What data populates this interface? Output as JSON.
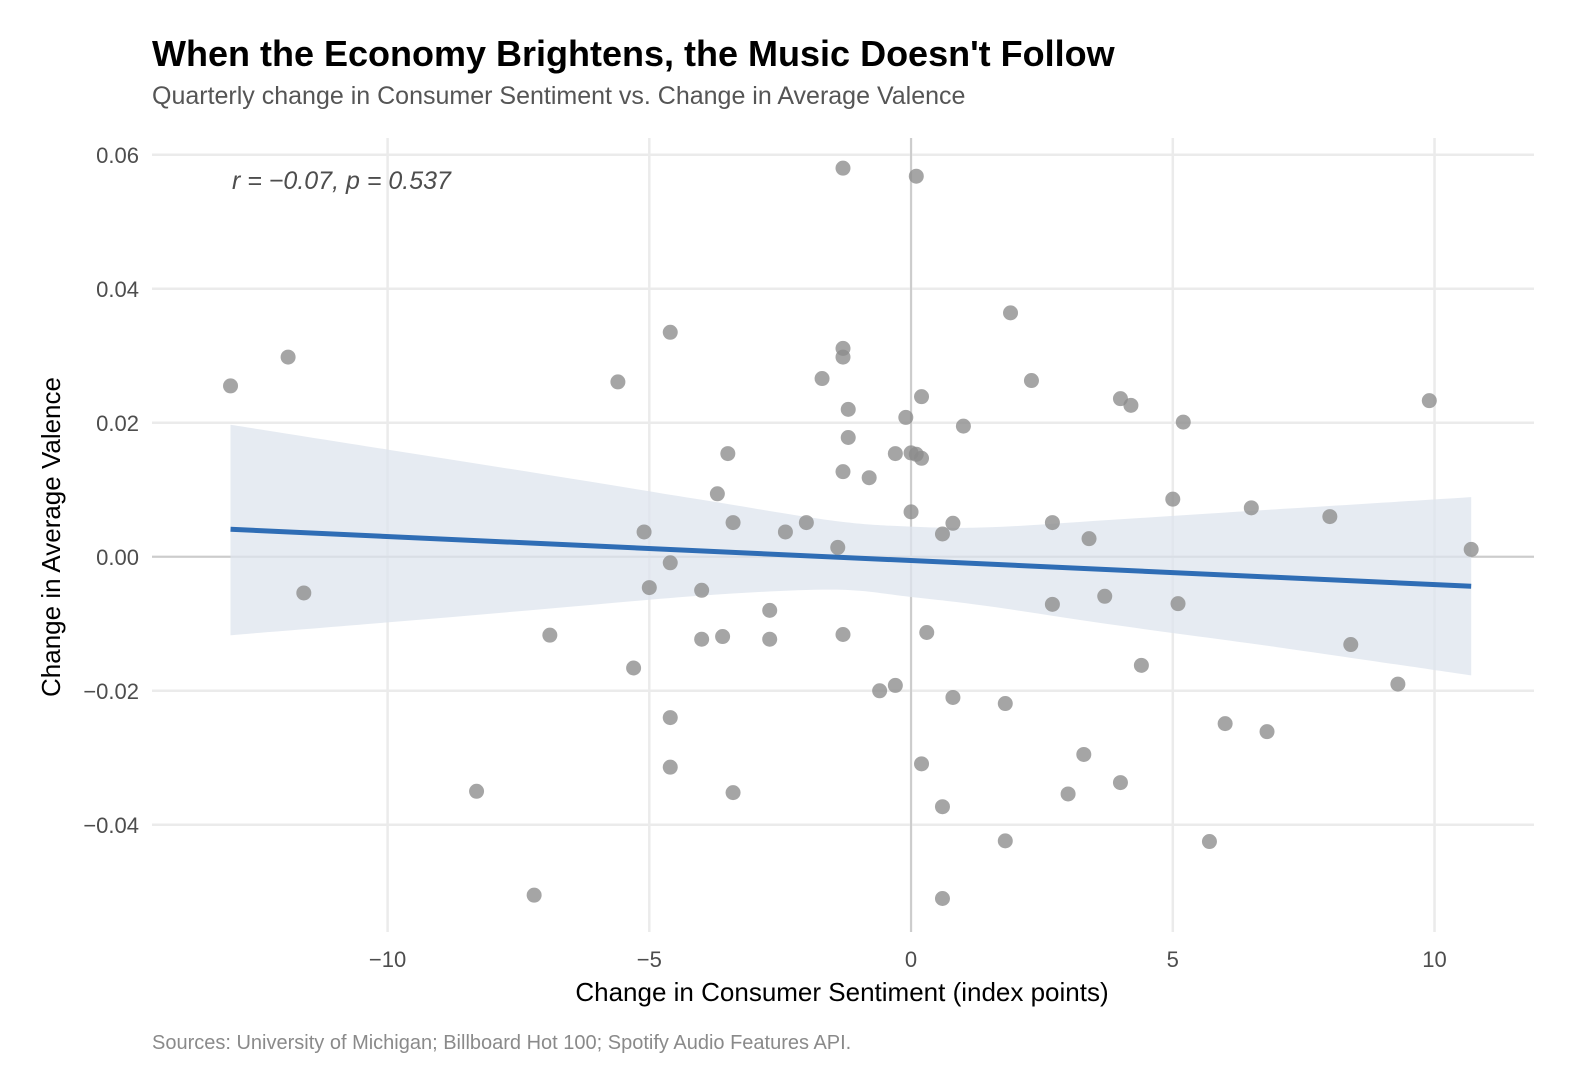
{
  "chart_data": {
    "type": "scatter",
    "title": "When the Economy Brightens, the Music Doesn't Follow",
    "subtitle": "Quarterly change in Consumer Sentiment vs. Change in Average Valence",
    "xlabel": "Change in Consumer Sentiment (index points)",
    "ylabel": "Change in Average Valence",
    "caption": "Sources: University of Michigan; Billboard Hot 100; Spotify Audio Features API.",
    "annotation": "r = −0.07,  p = 0.537",
    "xlim": [
      -14.5,
      11.9
    ],
    "ylim": [
      -0.056,
      0.0625
    ],
    "x_ticks": [
      -10,
      -5,
      0,
      5,
      10
    ],
    "x_tick_labels": [
      "−10",
      "−5",
      "0",
      "5",
      "10"
    ],
    "y_ticks": [
      0.06,
      0.04,
      0.02,
      0.0,
      -0.02,
      -0.04
    ],
    "y_tick_labels": [
      "0.06",
      "0.04",
      "0.02",
      "0.00",
      "−0.02",
      "−0.04"
    ],
    "grid": true,
    "reference_lines": {
      "x": 0,
      "y": 0
    },
    "colors": {
      "points": "#8c8c8c",
      "trend_line": "#2f6db5",
      "confidence_band": "#dde4ee",
      "grid": "#ebebeb",
      "reference": "#cccccc"
    },
    "points": [
      {
        "x": -13.0,
        "y": 0.0255
      },
      {
        "x": -11.9,
        "y": 0.0298
      },
      {
        "x": -11.6,
        "y": -0.0054
      },
      {
        "x": -8.3,
        "y": -0.035
      },
      {
        "x": -7.2,
        "y": -0.0505
      },
      {
        "x": -6.9,
        "y": -0.0117
      },
      {
        "x": -5.6,
        "y": 0.0261
      },
      {
        "x": -5.3,
        "y": -0.0166
      },
      {
        "x": -5.1,
        "y": 0.0037
      },
      {
        "x": -5.0,
        "y": -0.0046
      },
      {
        "x": -4.6,
        "y": 0.0335
      },
      {
        "x": -4.6,
        "y": -0.0009
      },
      {
        "x": -4.6,
        "y": -0.024
      },
      {
        "x": -4.6,
        "y": -0.0314
      },
      {
        "x": -4.0,
        "y": -0.005
      },
      {
        "x": -4.0,
        "y": -0.0123
      },
      {
        "x": -3.7,
        "y": 0.0094
      },
      {
        "x": -3.5,
        "y": 0.0154
      },
      {
        "x": -3.6,
        "y": -0.0119
      },
      {
        "x": -3.4,
        "y": 0.0051
      },
      {
        "x": -3.4,
        "y": -0.0352
      },
      {
        "x": -2.7,
        "y": -0.008
      },
      {
        "x": -2.7,
        "y": -0.0123
      },
      {
        "x": -2.4,
        "y": 0.0037
      },
      {
        "x": -2.0,
        "y": 0.0051
      },
      {
        "x": -1.7,
        "y": 0.0266
      },
      {
        "x": -1.3,
        "y": 0.058
      },
      {
        "x": -1.3,
        "y": 0.0311
      },
      {
        "x": -1.3,
        "y": 0.0298
      },
      {
        "x": -1.2,
        "y": 0.022
      },
      {
        "x": -1.2,
        "y": 0.0178
      },
      {
        "x": -1.3,
        "y": 0.0127
      },
      {
        "x": -1.4,
        "y": 0.0014
      },
      {
        "x": -1.3,
        "y": -0.0116
      },
      {
        "x": -0.8,
        "y": 0.0118
      },
      {
        "x": -0.6,
        "y": -0.02
      },
      {
        "x": -0.3,
        "y": -0.0192
      },
      {
        "x": -0.3,
        "y": 0.0154
      },
      {
        "x": -0.1,
        "y": 0.0208
      },
      {
        "x": 0.0,
        "y": 0.0155
      },
      {
        "x": 0.1,
        "y": 0.0153
      },
      {
        "x": 0.2,
        "y": 0.0147
      },
      {
        "x": 0.0,
        "y": 0.0067
      },
      {
        "x": 0.1,
        "y": 0.0568
      },
      {
        "x": 0.2,
        "y": 0.0239
      },
      {
        "x": 0.2,
        "y": -0.0309
      },
      {
        "x": 0.3,
        "y": -0.0113
      },
      {
        "x": 0.6,
        "y": 0.0034
      },
      {
        "x": 0.6,
        "y": -0.0373
      },
      {
        "x": 0.6,
        "y": -0.051
      },
      {
        "x": 0.8,
        "y": 0.005
      },
      {
        "x": 0.8,
        "y": -0.021
      },
      {
        "x": 1.0,
        "y": 0.0195
      },
      {
        "x": 1.8,
        "y": -0.0219
      },
      {
        "x": 1.8,
        "y": -0.0424
      },
      {
        "x": 1.9,
        "y": 0.0364
      },
      {
        "x": 2.3,
        "y": 0.0263
      },
      {
        "x": 2.7,
        "y": 0.0051
      },
      {
        "x": 2.7,
        "y": -0.0071
      },
      {
        "x": 3.0,
        "y": -0.0354
      },
      {
        "x": 3.3,
        "y": -0.0295
      },
      {
        "x": 3.4,
        "y": 0.0027
      },
      {
        "x": 3.7,
        "y": -0.0059
      },
      {
        "x": 4.0,
        "y": 0.0236
      },
      {
        "x": 4.2,
        "y": 0.0226
      },
      {
        "x": 4.0,
        "y": -0.0337
      },
      {
        "x": 4.4,
        "y": -0.0162
      },
      {
        "x": 5.0,
        "y": 0.0086
      },
      {
        "x": 5.1,
        "y": -0.007
      },
      {
        "x": 5.2,
        "y": 0.0201
      },
      {
        "x": 5.7,
        "y": -0.0425
      },
      {
        "x": 6.0,
        "y": -0.0249
      },
      {
        "x": 6.5,
        "y": 0.0073
      },
      {
        "x": 6.8,
        "y": -0.0261
      },
      {
        "x": 8.0,
        "y": 0.006
      },
      {
        "x": 8.4,
        "y": -0.0131
      },
      {
        "x": 9.3,
        "y": -0.019
      },
      {
        "x": 9.9,
        "y": 0.0233
      },
      {
        "x": 10.7,
        "y": 0.0011
      }
    ],
    "trend": {
      "x_start": -13.0,
      "y_start": 0.0041,
      "x_end": 10.7,
      "y_end": -0.0044
    },
    "confidence_band": {
      "x": [
        -13.0,
        -10.0,
        -7.0,
        -4.0,
        -1.5,
        0.0,
        1.5,
        4.0,
        7.0,
        10.7
      ],
      "upper": [
        0.0197,
        0.016,
        0.0123,
        0.0085,
        0.0054,
        0.0045,
        0.0044,
        0.0056,
        0.0071,
        0.0089
      ],
      "lower": [
        -0.0117,
        -0.0098,
        -0.0078,
        -0.0058,
        -0.0049,
        -0.006,
        -0.0074,
        -0.0103,
        -0.0135,
        -0.0177
      ]
    }
  }
}
